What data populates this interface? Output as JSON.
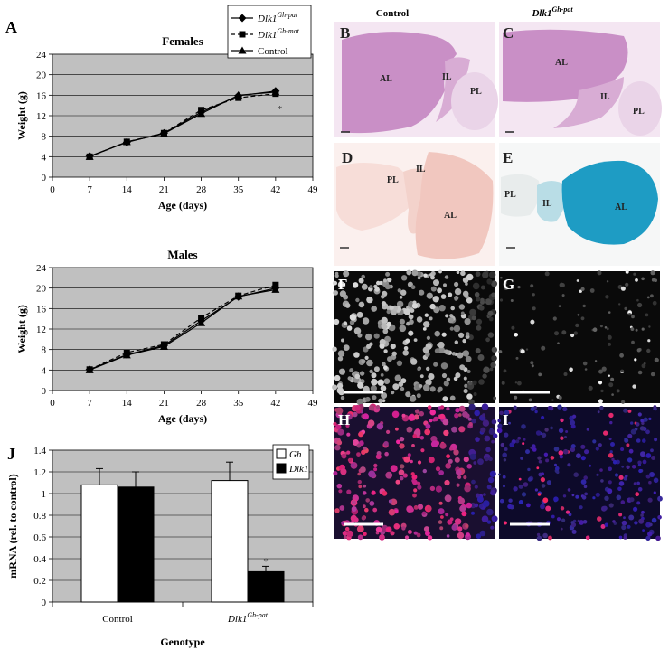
{
  "panels": {
    "A": "A",
    "J": "J",
    "B": "B",
    "C": "C",
    "D": "D",
    "E": "E",
    "F": "F",
    "G": "G",
    "H": "H",
    "I": "I"
  },
  "micrograph_headers": {
    "control": "Control",
    "mutant": "Dlk1",
    "mutant_sup": "Gh-pat"
  },
  "tissue_labels": {
    "B": [
      "AL",
      "IL",
      "PL"
    ],
    "C": [
      "AL",
      "IL",
      "PL"
    ],
    "D": [
      "PL",
      "IL",
      "AL"
    ],
    "E": [
      "PL",
      "IL",
      "AL"
    ]
  },
  "colors": {
    "plot_bg": "#c0c0c0",
    "he_stain": "#c98fc6",
    "he_light": "#ead4e8",
    "dlk_control_stain": "#f1c7bf",
    "dlk_mutant_stain": "#1e9cc4",
    "fluor_bg": "#0a0a0a",
    "merge_magenta": "#d0307a",
    "merge_blue": "#3a2a90"
  },
  "chart_data": [
    {
      "type": "line",
      "title": "Females",
      "xlabel": "Age (days)",
      "ylabel": "Weight (g)",
      "x": [
        7,
        14,
        21,
        28,
        35,
        42
      ],
      "xticks": [
        0,
        7,
        14,
        21,
        28,
        35,
        42,
        49
      ],
      "yticks": [
        0,
        4,
        8,
        12,
        16,
        20,
        24
      ],
      "xlim": [
        0,
        49
      ],
      "ylim": [
        0,
        24
      ],
      "grid": true,
      "legend": "top-right",
      "series": [
        {
          "name": "Dlk1",
          "name_sup": "Gh-pat",
          "marker": "diamond",
          "dash": "solid",
          "values": [
            4.1,
            6.8,
            8.6,
            12.7,
            15.9,
            16.8
          ]
        },
        {
          "name": "Dlk1",
          "name_sup": "Gh-mat",
          "marker": "square",
          "dash": "dashed",
          "values": [
            4.0,
            6.9,
            8.6,
            13.1,
            15.5,
            16.3
          ]
        },
        {
          "name": "Control",
          "marker": "triangle",
          "dash": "solid",
          "values": [
            4.0,
            6.9,
            8.5,
            12.4,
            16.0,
            16.6
          ]
        }
      ],
      "annotations": [
        {
          "text": "*",
          "x": 42
        }
      ]
    },
    {
      "type": "line",
      "title": "Males",
      "xlabel": "Age (days)",
      "ylabel": "Weight (g)",
      "x": [
        7,
        14,
        21,
        28,
        35,
        42
      ],
      "xticks": [
        0,
        7,
        14,
        21,
        28,
        35,
        42,
        49
      ],
      "yticks": [
        0,
        4,
        8,
        12,
        16,
        20,
        24
      ],
      "xlim": [
        0,
        49
      ],
      "ylim": [
        0,
        24
      ],
      "grid": true,
      "series": [
        {
          "name": "Dlk1",
          "name_sup": "Gh-pat",
          "marker": "diamond",
          "dash": "solid",
          "values": [
            4.1,
            7.0,
            8.8,
            13.6,
            18.3,
            20.0
          ]
        },
        {
          "name": "Dlk1",
          "name_sup": "Gh-mat",
          "marker": "square",
          "dash": "dashed",
          "values": [
            4.1,
            7.4,
            9.0,
            14.2,
            18.5,
            20.6
          ]
        },
        {
          "name": "Control",
          "marker": "triangle",
          "dash": "solid",
          "values": [
            4.0,
            6.9,
            8.6,
            13.2,
            18.4,
            19.7
          ]
        }
      ]
    },
    {
      "type": "bar",
      "xlabel": "Genotype",
      "ylabel": "mRNA (rel. to control)",
      "categories": [
        "Control",
        "Dlk1"
      ],
      "category_sups": [
        "",
        "Gh-pat"
      ],
      "yticks": [
        0,
        0.2,
        0.4,
        0.6,
        0.8,
        1.0,
        1.2,
        1.4
      ],
      "ytick_labels": [
        "0",
        "0.2",
        "0.4",
        "0.6",
        "0.8",
        "1",
        "1.2",
        "1.4"
      ],
      "ylim": [
        0,
        1.4
      ],
      "grid": true,
      "legend": "top-right",
      "series": [
        {
          "name": "Gh",
          "color": "#ffffff",
          "values": [
            1.08,
            1.12
          ],
          "errors": [
            0.15,
            0.17
          ]
        },
        {
          "name": "Dlk1",
          "color": "#000000",
          "values": [
            1.06,
            0.28
          ],
          "errors": [
            0.14,
            0.05
          ]
        }
      ],
      "annotations": [
        {
          "text": "*",
          "category": 1,
          "series": 1
        }
      ]
    }
  ]
}
